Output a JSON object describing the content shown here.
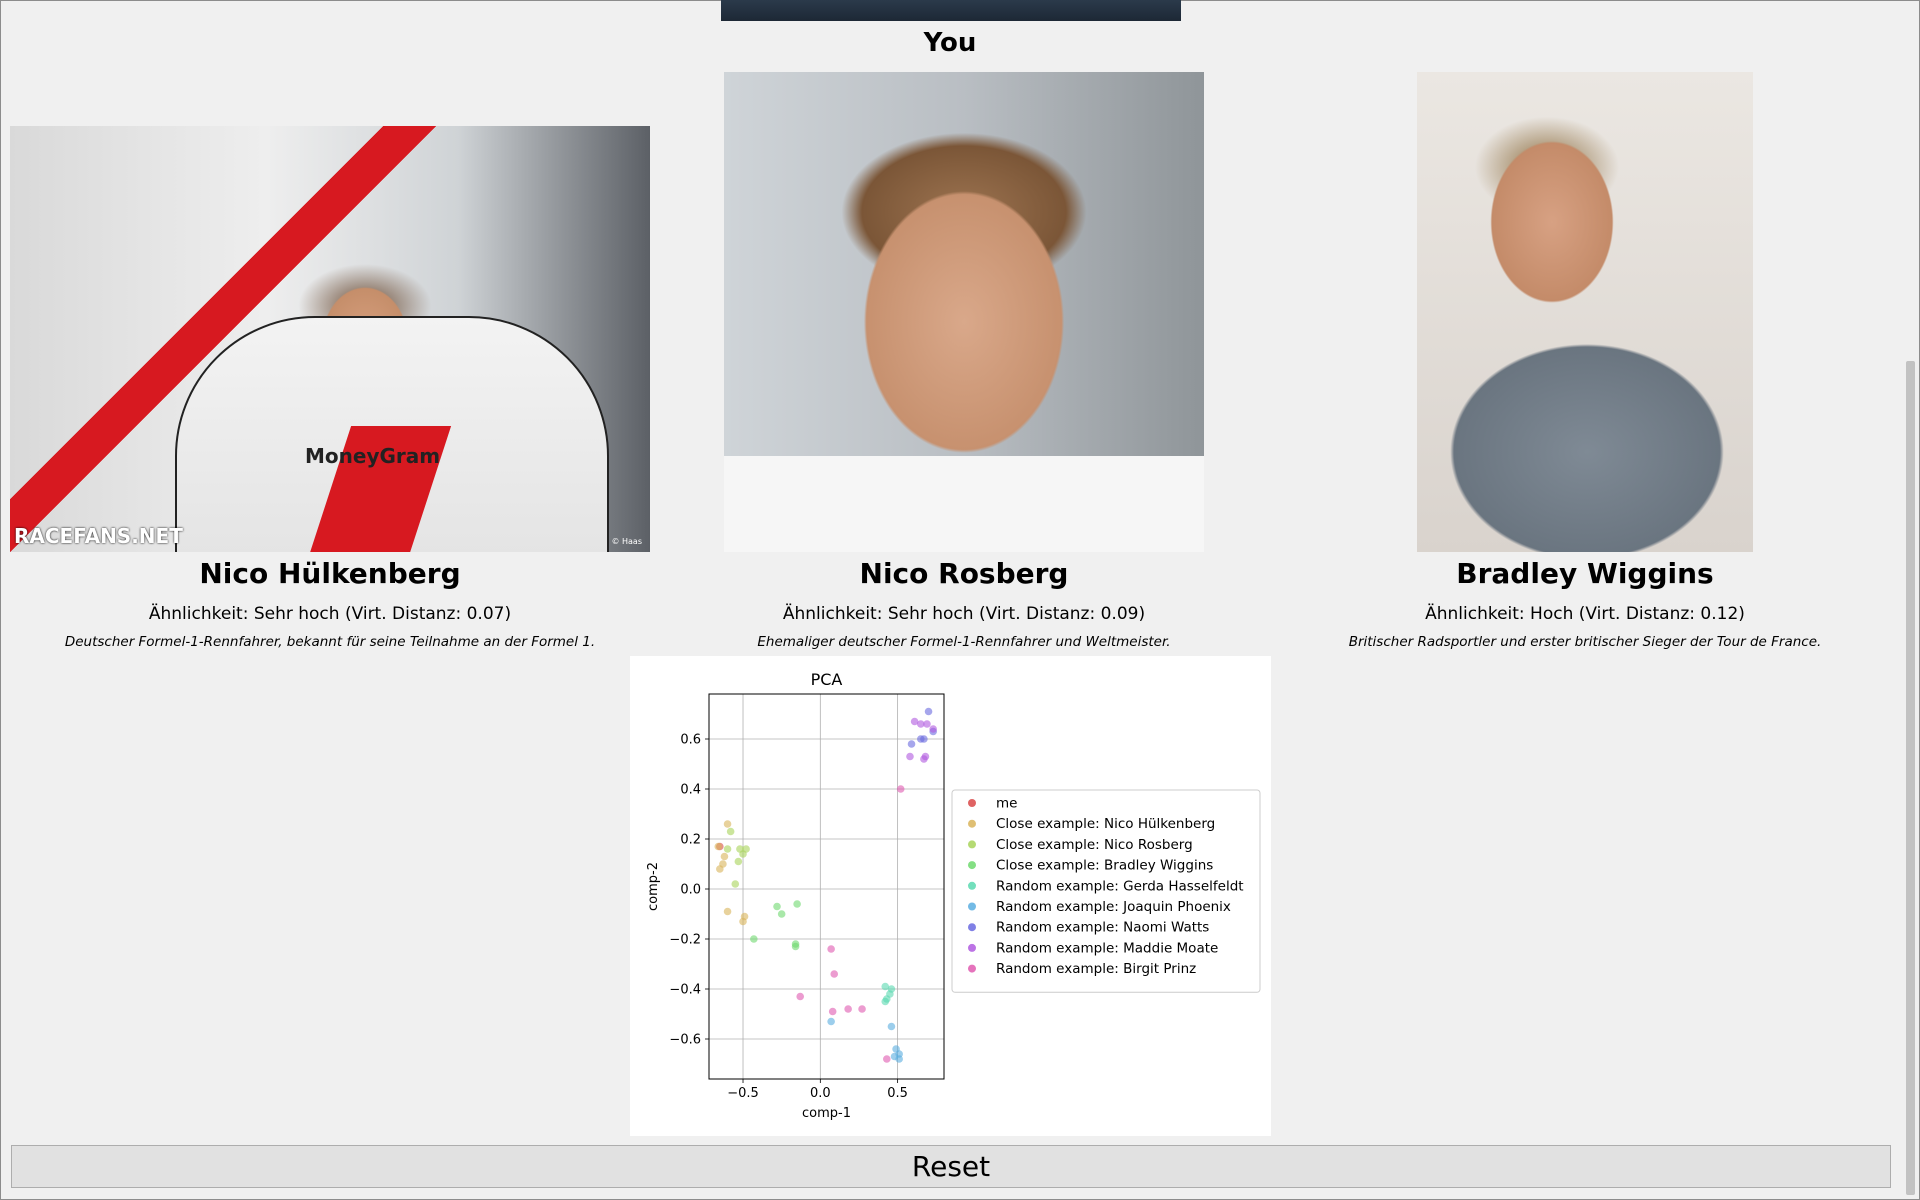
{
  "header": {
    "you_label": "You"
  },
  "matches": [
    {
      "name": "Nico Hülkenberg",
      "similarity": "Ähnlichkeit: Sehr hoch (Virt. Distanz: 0.07)",
      "description": "Deutscher Formel-1-Rennfahrer, bekannt für seine Teilnahme an der Formel 1.",
      "photo_suit_text": "MoneyGram",
      "photo_watermark": "RACEFANS.NET",
      "photo_credit": "© Haas"
    },
    {
      "name": "Nico Rosberg",
      "similarity": "Ähnlichkeit: Sehr hoch (Virt. Distanz: 0.09)",
      "description": "Ehemaliger deutscher Formel-1-Rennfahrer und Weltmeister."
    },
    {
      "name": "Bradley Wiggins",
      "similarity": "Ähnlichkeit: Hoch (Virt. Distanz: 0.12)",
      "description": "Britischer Radsportler und erster britischer Sieger der Tour de France."
    }
  ],
  "chart_data": {
    "type": "scatter",
    "title": "PCA",
    "xlabel": "comp-1",
    "ylabel": "comp-2",
    "xlim": [
      -0.72,
      0.8
    ],
    "ylim": [
      -0.76,
      0.78
    ],
    "xticks": [
      -0.5,
      0.0,
      0.5
    ],
    "xtick_labels": [
      "−0.5",
      "0.0",
      "0.5"
    ],
    "yticks": [
      -0.6,
      -0.4,
      -0.2,
      0.0,
      0.2,
      0.4,
      0.6
    ],
    "ytick_labels": [
      "−0.6",
      "−0.4",
      "−0.2",
      "0.0",
      "0.2",
      "0.4",
      "0.6"
    ],
    "grid": true,
    "legend_position": "right",
    "series": [
      {
        "name": "me",
        "color": "#d94848",
        "points": [
          [
            -0.65,
            0.17
          ]
        ]
      },
      {
        "name": "Close example: Nico Hülkenberg",
        "color": "#d9b45a",
        "points": [
          [
            -0.6,
            0.26
          ],
          [
            -0.62,
            0.13
          ],
          [
            -0.65,
            0.08
          ],
          [
            -0.6,
            -0.09
          ],
          [
            -0.5,
            -0.13
          ],
          [
            -0.49,
            -0.11
          ],
          [
            -0.63,
            0.1
          ],
          [
            -0.66,
            0.17
          ]
        ]
      },
      {
        "name": "Close example: Nico Rosberg",
        "color": "#a8d45a",
        "points": [
          [
            -0.58,
            0.23
          ],
          [
            -0.52,
            0.16
          ],
          [
            -0.48,
            0.16
          ],
          [
            -0.5,
            0.14
          ],
          [
            -0.53,
            0.11
          ],
          [
            -0.55,
            0.02
          ],
          [
            -0.6,
            0.16
          ]
        ]
      },
      {
        "name": "Close example: Bradley Wiggins",
        "color": "#6fd96f",
        "points": [
          [
            -0.28,
            -0.07
          ],
          [
            -0.25,
            -0.1
          ],
          [
            -0.15,
            -0.06
          ],
          [
            -0.16,
            -0.22
          ],
          [
            -0.16,
            -0.23
          ],
          [
            -0.43,
            -0.2
          ]
        ]
      },
      {
        "name": "Random example: Gerda Hasselfeldt",
        "color": "#5ad9b0",
        "points": [
          [
            0.42,
            -0.39
          ],
          [
            0.46,
            -0.4
          ],
          [
            0.43,
            -0.44
          ],
          [
            0.42,
            -0.45
          ],
          [
            0.45,
            -0.42
          ]
        ]
      },
      {
        "name": "Random example: Joaquin Phoenix",
        "color": "#5aaee0",
        "points": [
          [
            0.07,
            -0.53
          ],
          [
            0.46,
            -0.55
          ],
          [
            0.49,
            -0.64
          ],
          [
            0.51,
            -0.66
          ],
          [
            0.51,
            -0.68
          ],
          [
            0.48,
            -0.67
          ]
        ]
      },
      {
        "name": "Random example: Naomi Watts",
        "color": "#6a6ae0",
        "points": [
          [
            0.7,
            0.71
          ],
          [
            0.65,
            0.6
          ],
          [
            0.59,
            0.58
          ],
          [
            0.67,
            0.6
          ],
          [
            0.73,
            0.63
          ]
        ]
      },
      {
        "name": "Random example: Maddie Moate",
        "color": "#b05ae0",
        "points": [
          [
            0.61,
            0.67
          ],
          [
            0.65,
            0.66
          ],
          [
            0.58,
            0.53
          ],
          [
            0.68,
            0.53
          ],
          [
            0.69,
            0.66
          ],
          [
            0.73,
            0.64
          ],
          [
            0.67,
            0.52
          ]
        ]
      },
      {
        "name": "Random example: Birgit Prinz",
        "color": "#e05ab0",
        "points": [
          [
            0.52,
            0.4
          ],
          [
            0.07,
            -0.24
          ],
          [
            0.09,
            -0.34
          ],
          [
            0.08,
            -0.49
          ],
          [
            0.18,
            -0.48
          ],
          [
            0.27,
            -0.48
          ],
          [
            -0.13,
            -0.43
          ],
          [
            0.43,
            -0.68
          ]
        ]
      }
    ]
  },
  "actions": {
    "reset_label": "Reset"
  }
}
